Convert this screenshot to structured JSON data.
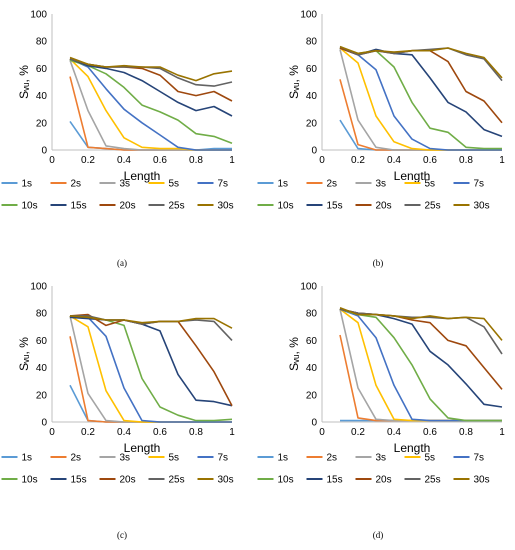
{
  "figure": {
    "panels": [
      "(a)",
      "(b)",
      "(c)",
      "(d)"
    ]
  },
  "colors": {
    "1s": "#5B9BD5",
    "2s": "#ED7D31",
    "3s": "#A5A5A5",
    "5s": "#FFC000",
    "7s": "#4472C4",
    "10s": "#70AD47",
    "15s": "#264478",
    "20s": "#9E480E",
    "25s": "#636363",
    "30s": "#997300"
  },
  "chart_data": [
    {
      "type": "line",
      "panel_label": "(a)",
      "xlabel": "Length",
      "ylabel": "Sᵥᵤ, %",
      "xlim": [
        0,
        1
      ],
      "ylim": [
        0,
        100
      ],
      "xticks": [
        "0",
        "0.2",
        "0.4",
        "0.6",
        "0.8",
        "1"
      ],
      "yticks": [
        "0",
        "20",
        "40",
        "60",
        "80",
        "100"
      ],
      "x": [
        0.1,
        0.2,
        0.3,
        0.4,
        0.5,
        0.6,
        0.7,
        0.8,
        0.9,
        1.0
      ],
      "legend_position": "bottom",
      "series": [
        {
          "name": "1s",
          "values": [
            21,
            2,
            1,
            0,
            0,
            0,
            0,
            0,
            1,
            1
          ]
        },
        {
          "name": "2s",
          "values": [
            54,
            2,
            1,
            0,
            0,
            0,
            0,
            0,
            0,
            0
          ]
        },
        {
          "name": "3s",
          "values": [
            66,
            29,
            3,
            1,
            0,
            0,
            0,
            0,
            0,
            0
          ]
        },
        {
          "name": "5s",
          "values": [
            67,
            54,
            29,
            9,
            2,
            1,
            1,
            0,
            0,
            0
          ]
        },
        {
          "name": "7s",
          "values": [
            67,
            61,
            45,
            30,
            20,
            11,
            2,
            0,
            0,
            0
          ]
        },
        {
          "name": "10s",
          "values": [
            66,
            62,
            56,
            46,
            33,
            28,
            22,
            12,
            10,
            5
          ]
        },
        {
          "name": "15s",
          "values": [
            67,
            62,
            60,
            57,
            51,
            43,
            35,
            29,
            32,
            25
          ]
        },
        {
          "name": "20s",
          "values": [
            67,
            63,
            61,
            61,
            60,
            55,
            43,
            40,
            43,
            36
          ]
        },
        {
          "name": "25s",
          "values": [
            67,
            63,
            61,
            61,
            61,
            60,
            53,
            48,
            47,
            50
          ]
        },
        {
          "name": "30s",
          "values": [
            68,
            63,
            61,
            62,
            61,
            61,
            55,
            51,
            56,
            58
          ]
        }
      ]
    },
    {
      "type": "line",
      "panel_label": "(b)",
      "xlabel": "Length",
      "ylabel": "Sᵥᵤ, %",
      "xlim": [
        0,
        1
      ],
      "ylim": [
        0,
        100
      ],
      "xticks": [
        "0",
        "0.2",
        "0.4",
        "0.6",
        "0.8",
        "1"
      ],
      "yticks": [
        "0",
        "20",
        "40",
        "60",
        "80",
        "100"
      ],
      "x": [
        0.1,
        0.2,
        0.3,
        0.4,
        0.5,
        0.6,
        0.7,
        0.8,
        0.9,
        1.0
      ],
      "legend_position": "bottom",
      "series": [
        {
          "name": "1s",
          "values": [
            22,
            1,
            0,
            0,
            0,
            0,
            0,
            0,
            0,
            0
          ]
        },
        {
          "name": "2s",
          "values": [
            52,
            4,
            0,
            0,
            0,
            0,
            0,
            0,
            0,
            0
          ]
        },
        {
          "name": "3s",
          "values": [
            74,
            22,
            2,
            0,
            0,
            0,
            0,
            0,
            0,
            0
          ]
        },
        {
          "name": "5s",
          "values": [
            75,
            64,
            25,
            6,
            1,
            0,
            0,
            0,
            0,
            0
          ]
        },
        {
          "name": "7s",
          "values": [
            75,
            70,
            59,
            25,
            8,
            1,
            0,
            0,
            0,
            0
          ]
        },
        {
          "name": "10s",
          "values": [
            75,
            71,
            73,
            61,
            35,
            16,
            13,
            2,
            1,
            1
          ]
        },
        {
          "name": "15s",
          "values": [
            75,
            70,
            74,
            71,
            70,
            53,
            35,
            28,
            15,
            10
          ]
        },
        {
          "name": "20s",
          "values": [
            75,
            70,
            73,
            71,
            73,
            73,
            65,
            43,
            36,
            20
          ]
        },
        {
          "name": "25s",
          "values": [
            76,
            70,
            73,
            71,
            73,
            74,
            75,
            70,
            67,
            51
          ]
        },
        {
          "name": "30s",
          "values": [
            76,
            71,
            73,
            72,
            73,
            73,
            75,
            71,
            68,
            53
          ]
        }
      ]
    },
    {
      "type": "line",
      "panel_label": "(c)",
      "xlabel": "Length",
      "ylabel": "Sᵥᵤ, %",
      "xlim": [
        0,
        1
      ],
      "ylim": [
        0,
        100
      ],
      "xticks": [
        "0",
        "0.2",
        "0.4",
        "0.6",
        "0.8",
        "1"
      ],
      "yticks": [
        "0",
        "20",
        "40",
        "60",
        "80",
        "100"
      ],
      "x": [
        0.1,
        0.2,
        0.3,
        0.4,
        0.5,
        0.6,
        0.7,
        0.8,
        0.9,
        1.0
      ],
      "legend_position": "bottom",
      "series": [
        {
          "name": "1s",
          "values": [
            27,
            1,
            0,
            0,
            0,
            0,
            0,
            0,
            0,
            0
          ]
        },
        {
          "name": "2s",
          "values": [
            63,
            1,
            0,
            0,
            0,
            0,
            0,
            0,
            0,
            0
          ]
        },
        {
          "name": "3s",
          "values": [
            78,
            21,
            1,
            0,
            0,
            0,
            0,
            0,
            0,
            0
          ]
        },
        {
          "name": "5s",
          "values": [
            78,
            70,
            23,
            1,
            0,
            0,
            0,
            0,
            0,
            0
          ]
        },
        {
          "name": "7s",
          "values": [
            78,
            77,
            63,
            25,
            1,
            0,
            0,
            0,
            0,
            0
          ]
        },
        {
          "name": "10s",
          "values": [
            78,
            77,
            75,
            71,
            32,
            11,
            5,
            1,
            1,
            2
          ]
        },
        {
          "name": "15s",
          "values": [
            77,
            76,
            75,
            75,
            72,
            67,
            35,
            16,
            15,
            12
          ]
        },
        {
          "name": "20s",
          "values": [
            78,
            79,
            71,
            75,
            72,
            74,
            74,
            56,
            37,
            12
          ]
        },
        {
          "name": "25s",
          "values": [
            78,
            78,
            75,
            75,
            72,
            74,
            74,
            75,
            74,
            60
          ]
        },
        {
          "name": "30s",
          "values": [
            78,
            77,
            75,
            75,
            73,
            74,
            74,
            76,
            76,
            69
          ]
        }
      ]
    },
    {
      "type": "line",
      "panel_label": "(d)",
      "xlabel": "Length",
      "ylabel": "Sᵥᵤ, %",
      "xlim": [
        0,
        1
      ],
      "ylim": [
        0,
        100
      ],
      "xticks": [
        "0",
        "0.2",
        "0.4",
        "0.6",
        "0.8",
        "1"
      ],
      "yticks": [
        "0",
        "20",
        "40",
        "60",
        "80",
        "100"
      ],
      "x": [
        0.1,
        0.2,
        0.3,
        0.4,
        0.5,
        0.6,
        0.7,
        0.8,
        0.9,
        1.0
      ],
      "legend_position": "bottom",
      "series": [
        {
          "name": "1s",
          "values": [
            1,
            1,
            1,
            1,
            1,
            1,
            1,
            1,
            1,
            1
          ]
        },
        {
          "name": "2s",
          "values": [
            64,
            3,
            1,
            1,
            1,
            1,
            1,
            1,
            1,
            1
          ]
        },
        {
          "name": "3s",
          "values": [
            83,
            25,
            2,
            1,
            1,
            1,
            1,
            1,
            1,
            1
          ]
        },
        {
          "name": "5s",
          "values": [
            83,
            73,
            27,
            2,
            1,
            1,
            1,
            1,
            1,
            1
          ]
        },
        {
          "name": "7s",
          "values": [
            83,
            78,
            62,
            27,
            2,
            1,
            1,
            1,
            1,
            1
          ]
        },
        {
          "name": "10s",
          "values": [
            83,
            79,
            77,
            62,
            42,
            17,
            3,
            1,
            1,
            1
          ]
        },
        {
          "name": "15s",
          "values": [
            83,
            80,
            79,
            76,
            72,
            52,
            42,
            28,
            13,
            11
          ]
        },
        {
          "name": "20s",
          "values": [
            83,
            80,
            79,
            78,
            75,
            73,
            60,
            56,
            40,
            24
          ]
        },
        {
          "name": "25s",
          "values": [
            83,
            80,
            79,
            78,
            77,
            77,
            76,
            77,
            70,
            50
          ]
        },
        {
          "name": "30s",
          "values": [
            84,
            79,
            79,
            78,
            76,
            78,
            76,
            77,
            76,
            60
          ]
        }
      ]
    }
  ]
}
